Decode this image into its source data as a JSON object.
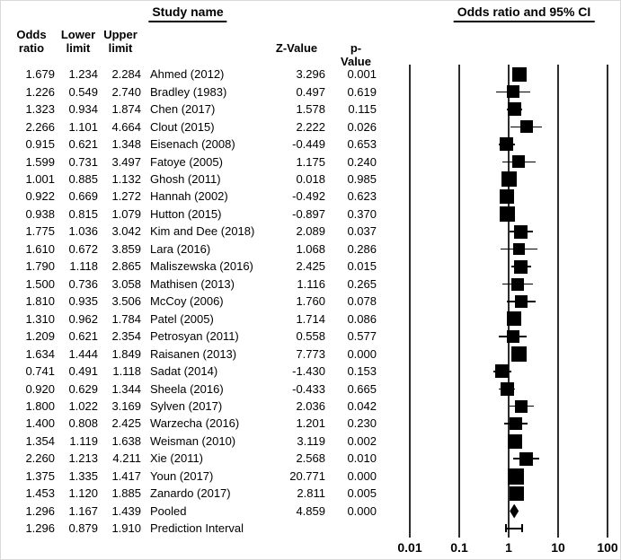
{
  "titles": {
    "study_name": "Study name",
    "or_ci": "Odds ratio and 95% CI"
  },
  "column_headers": {
    "odds_line1": "Odds",
    "odds_line2": "ratio",
    "lower_line1": "Lower",
    "lower_line2": "limit",
    "upper_line1": "Upper",
    "upper_line2": "limit",
    "z_value": "Z-Value",
    "p_value": "p-Value"
  },
  "colors": {
    "text": "#000000",
    "marker": "#000000",
    "gridline": "#2d2d2d",
    "background": "#ffffff"
  },
  "chart_data": {
    "type": "forest",
    "title": "Odds ratio and 95% CI",
    "x_axis": {
      "scale": "log10",
      "range": [
        0.01,
        100
      ],
      "ticks": [
        0.01,
        0.1,
        1,
        10,
        100
      ],
      "tick_labels": [
        "0.01",
        "0.1",
        "1",
        "10",
        "100"
      ],
      "null_line": 1
    },
    "columns": [
      "Odds ratio",
      "Lower limit",
      "Upper limit",
      "Study name",
      "Z-Value",
      "p-Value"
    ],
    "studies": [
      {
        "name": "Ahmed (2012)",
        "odds_ratio": "1.679",
        "lower": "1.234",
        "upper": "2.284",
        "z": "3.296",
        "p": "0.001",
        "size": 16
      },
      {
        "name": "Bradley (1983)",
        "odds_ratio": "1.226",
        "lower": "0.549",
        "upper": "2.740",
        "z": "0.497",
        "p": "0.619",
        "size": 14
      },
      {
        "name": "Chen (2017)",
        "odds_ratio": "1.323",
        "lower": "0.934",
        "upper": "1.874",
        "z": "1.578",
        "p": "0.115",
        "size": 15
      },
      {
        "name": "Clout (2015)",
        "odds_ratio": "2.266",
        "lower": "1.101",
        "upper": "4.664",
        "z": "2.222",
        "p": "0.026",
        "size": 14
      },
      {
        "name": "Eisenach (2008)",
        "odds_ratio": "0.915",
        "lower": "0.621",
        "upper": "1.348",
        "z": "-0.449",
        "p": "0.653",
        "size": 15
      },
      {
        "name": "Fatoye (2005)",
        "odds_ratio": "1.599",
        "lower": "0.731",
        "upper": "3.497",
        "z": "1.175",
        "p": "0.240",
        "size": 14
      },
      {
        "name": "Ghosh (2011)",
        "odds_ratio": "1.001",
        "lower": "0.885",
        "upper": "1.132",
        "z": "0.018",
        "p": "0.985",
        "size": 17
      },
      {
        "name": "Hannah (2002)",
        "odds_ratio": "0.922",
        "lower": "0.669",
        "upper": "1.272",
        "z": "-0.492",
        "p": "0.623",
        "size": 16
      },
      {
        "name": "Hutton (2015)",
        "odds_ratio": "0.938",
        "lower": "0.815",
        "upper": "1.079",
        "z": "-0.897",
        "p": "0.370",
        "size": 17
      },
      {
        "name": "Kim and Dee (2018)",
        "odds_ratio": "1.775",
        "lower": "1.036",
        "upper": "3.042",
        "z": "2.089",
        "p": "0.037",
        "size": 15
      },
      {
        "name": "Lara (2016)",
        "odds_ratio": "1.610",
        "lower": "0.672",
        "upper": "3.859",
        "z": "1.068",
        "p": "0.286",
        "size": 13
      },
      {
        "name": "Maliszewska (2016)",
        "odds_ratio": "1.790",
        "lower": "1.118",
        "upper": "2.865",
        "z": "2.425",
        "p": "0.015",
        "size": 15
      },
      {
        "name": "Mathisen (2013)",
        "odds_ratio": "1.500",
        "lower": "0.736",
        "upper": "3.058",
        "z": "1.116",
        "p": "0.265",
        "size": 14
      },
      {
        "name": "McCoy (2006)",
        "odds_ratio": "1.810",
        "lower": "0.935",
        "upper": "3.506",
        "z": "1.760",
        "p": "0.078",
        "size": 14
      },
      {
        "name": "Patel (2005)",
        "odds_ratio": "1.310",
        "lower": "0.962",
        "upper": "1.784",
        "z": "1.714",
        "p": "0.086",
        "size": 16
      },
      {
        "name": "Petrosyan (2011)",
        "odds_ratio": "1.209",
        "lower": "0.621",
        "upper": "2.354",
        "z": "0.558",
        "p": "0.577",
        "size": 14
      },
      {
        "name": "Raisanen (2013)",
        "odds_ratio": "1.634",
        "lower": "1.444",
        "upper": "1.849",
        "z": "7.773",
        "p": "0.000",
        "size": 17
      },
      {
        "name": "Sadat (2014)",
        "odds_ratio": "0.741",
        "lower": "0.491",
        "upper": "1.118",
        "z": "-1.430",
        "p": "0.153",
        "size": 15
      },
      {
        "name": "Sheela (2016)",
        "odds_ratio": "0.920",
        "lower": "0.629",
        "upper": "1.344",
        "z": "-0.433",
        "p": "0.665",
        "size": 15
      },
      {
        "name": "Sylven (2017)",
        "odds_ratio": "1.800",
        "lower": "1.022",
        "upper": "3.169",
        "z": "2.036",
        "p": "0.042",
        "size": 14
      },
      {
        "name": "Warzecha (2016)",
        "odds_ratio": "1.400",
        "lower": "0.808",
        "upper": "2.425",
        "z": "1.201",
        "p": "0.230",
        "size": 14
      },
      {
        "name": "Weisman (2010)",
        "odds_ratio": "1.354",
        "lower": "1.119",
        "upper": "1.638",
        "z": "3.119",
        "p": "0.002",
        "size": 16
      },
      {
        "name": "Xie (2011)",
        "odds_ratio": "2.260",
        "lower": "1.213",
        "upper": "4.211",
        "z": "2.568",
        "p": "0.010",
        "size": 15
      },
      {
        "name": "Youn (2017)",
        "odds_ratio": "1.375",
        "lower": "1.335",
        "upper": "1.417",
        "z": "20.771",
        "p": "0.000",
        "size": 18
      },
      {
        "name": "Zanardo (2017)",
        "odds_ratio": "1.453",
        "lower": "1.120",
        "upper": "1.885",
        "z": "2.811",
        "p": "0.005",
        "size": 16
      }
    ],
    "pooled": {
      "name": "Pooled",
      "odds_ratio": "1.296",
      "lower": "1.167",
      "upper": "1.439",
      "z": "4.859",
      "p": "0.000"
    },
    "prediction_interval": {
      "name": "Prediction Interval",
      "odds_ratio": "1.296",
      "lower": "0.879",
      "upper": "1.910",
      "z": "",
      "p": ""
    }
  }
}
